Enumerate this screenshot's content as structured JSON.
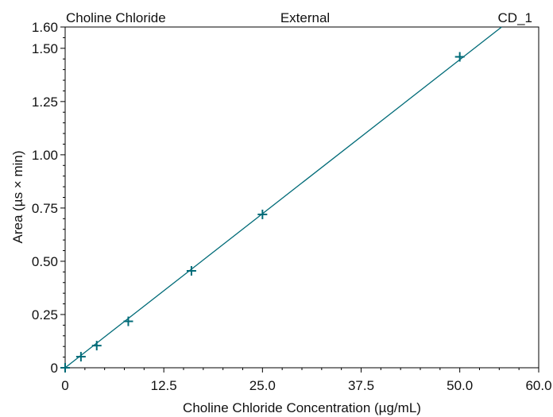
{
  "header": {
    "left": "Choline Chloride",
    "center": "External",
    "right": "CD_1"
  },
  "chart_data": {
    "type": "scatter",
    "xlabel": "Choline Chloride Concentration (µg/mL)",
    "ylabel": "Area (µs × min)",
    "xlim": [
      0,
      60
    ],
    "ylim": [
      0,
      1.6
    ],
    "x_ticks": [
      0,
      12.5,
      25,
      37.5,
      50,
      60
    ],
    "x_tick_labels": [
      "0",
      "12.5",
      "25.0",
      "37.5",
      "50.0",
      "60.0"
    ],
    "y_ticks": [
      0,
      0.25,
      0.5,
      0.75,
      1.0,
      1.25,
      1.5,
      1.6
    ],
    "y_tick_labels": [
      "0",
      "0.25",
      "0.50",
      "0.75",
      "1.00",
      "1.25",
      "1.50",
      "1.60"
    ],
    "grid": false,
    "legend": "none",
    "color": "#006b78",
    "series": [
      {
        "x": [
          0,
          2,
          4,
          8,
          16,
          25,
          50
        ],
        "y": [
          0,
          0.052,
          0.104,
          0.218,
          0.455,
          0.72,
          1.46
        ]
      }
    ],
    "fit_line": {
      "x": [
        0,
        55.3
      ],
      "y": [
        0,
        1.6
      ]
    }
  }
}
